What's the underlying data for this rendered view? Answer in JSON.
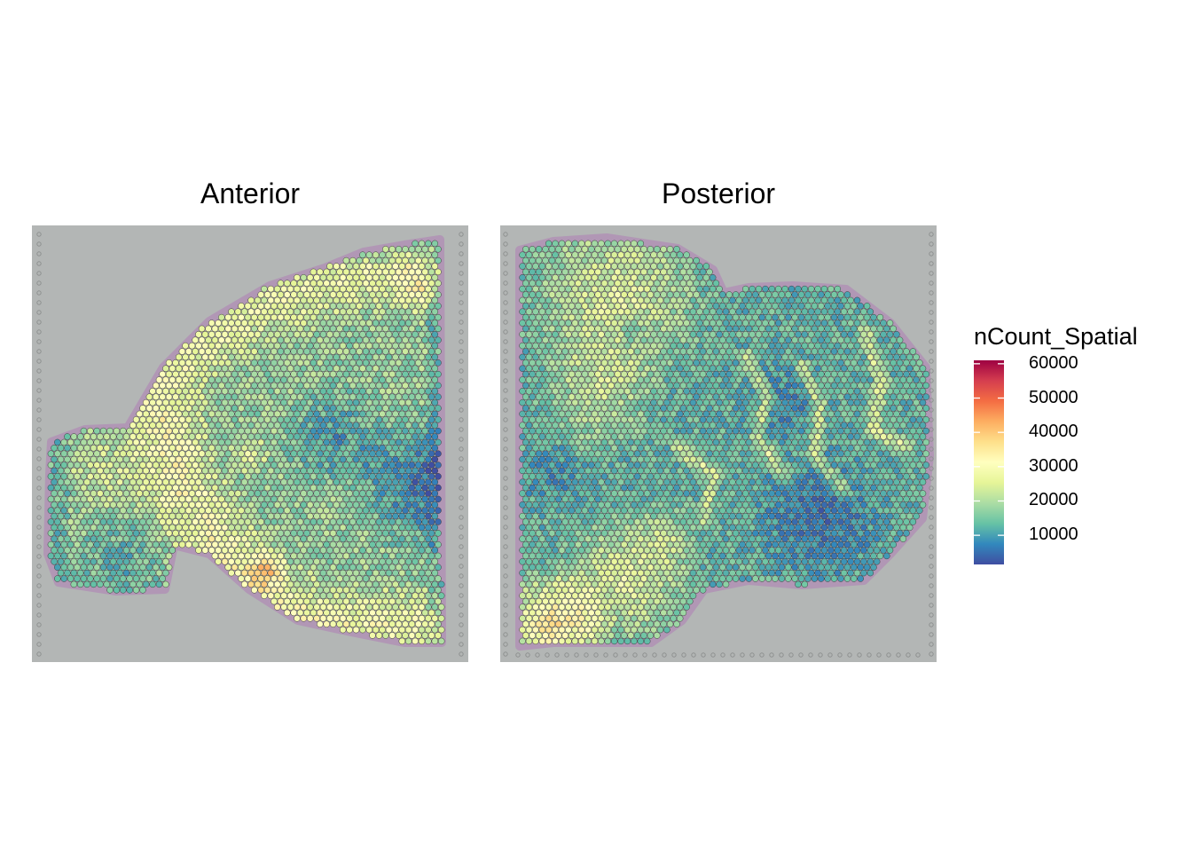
{
  "chart_data": [
    {
      "type": "scatter",
      "title": "Anterior",
      "panel_index": 0
    },
    {
      "type": "scatter",
      "title": "Posterior",
      "panel_index": 1
    }
  ],
  "legend": {
    "title": "nCount_Spatial",
    "min": 1500,
    "max": 61000,
    "ticks": [
      60000,
      50000,
      40000,
      30000,
      20000,
      10000
    ],
    "tick_labels": [
      "60000",
      "50000",
      "40000",
      "30000",
      "20000",
      "10000"
    ],
    "colormap": "Spectral (reversed)",
    "colors": [
      "#3f4ea1",
      "#3288bd",
      "#66c2a5",
      "#abdda4",
      "#e6f598",
      "#ffffbf",
      "#fee08b",
      "#fdae61",
      "#f46d43",
      "#d53e4f",
      "#9e0142"
    ]
  },
  "colors": {
    "tissue_background": "#b3b6b5",
    "tissue_stain": "#b070b5",
    "fiducial": "#8e9190"
  }
}
